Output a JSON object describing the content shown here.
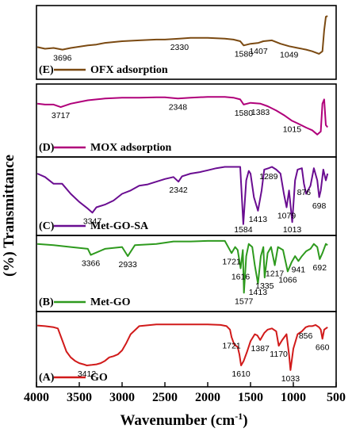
{
  "chart_data": {
    "type": "line",
    "title": "",
    "xlabel": "Wavenumber (cm",
    "xlabel_sup": "-1",
    "xlabel_close": ")",
    "ylabel": "(%) Transmittance",
    "xlim": [
      4000,
      500
    ],
    "x_reversed": true,
    "x_ticks": [
      4000,
      3500,
      3000,
      2500,
      2000,
      1500,
      1000,
      500
    ],
    "grid": false,
    "legend_placement": "bottom-left of each panel",
    "panels": [
      {
        "name": "(E) OFX adsorption",
        "color": "#7b4a12",
        "series": {
          "x": [
            3990,
            3900,
            3800,
            3696,
            3600,
            3500,
            3400,
            3300,
            3200,
            3000,
            2800,
            2600,
            2500,
            2330,
            2200,
            2000,
            1800,
            1700,
            1620,
            1580,
            1500,
            1407,
            1350,
            1250,
            1150,
            1049,
            950,
            850,
            780,
            700,
            660,
            640,
            620,
            600
          ],
          "y": [
            0.8,
            0.84,
            0.82,
            0.86,
            0.82,
            0.79,
            0.76,
            0.74,
            0.7,
            0.66,
            0.64,
            0.62,
            0.62,
            0.6,
            0.58,
            0.58,
            0.6,
            0.62,
            0.66,
            0.76,
            0.72,
            0.7,
            0.66,
            0.64,
            0.72,
            0.78,
            0.82,
            0.86,
            0.9,
            0.96,
            0.9,
            0.4,
            0.08,
            0.06
          ]
        },
        "annotations": [
          {
            "label": "3696",
            "x": 3696
          },
          {
            "label": "2330",
            "x": 2330
          },
          {
            "label": "1580",
            "x": 1580
          },
          {
            "label": "1407",
            "x": 1407
          },
          {
            "label": "1049",
            "x": 1049
          }
        ]
      },
      {
        "name": "(D) MOX adsorption",
        "color": "#b0007a",
        "series": {
          "x": [
            3990,
            3900,
            3800,
            3717,
            3600,
            3500,
            3400,
            3300,
            3200,
            3000,
            2800,
            2600,
            2500,
            2348,
            2200,
            2000,
            1800,
            1700,
            1620,
            1580,
            1500,
            1383,
            1300,
            1200,
            1100,
            1015,
            950,
            850,
            780,
            720,
            680,
            660,
            640,
            620,
            600
          ],
          "y": [
            0.2,
            0.22,
            0.22,
            0.28,
            0.2,
            0.16,
            0.12,
            0.1,
            0.08,
            0.06,
            0.06,
            0.05,
            0.05,
            0.08,
            0.06,
            0.04,
            0.04,
            0.06,
            0.1,
            0.22,
            0.18,
            0.2,
            0.26,
            0.36,
            0.48,
            0.6,
            0.66,
            0.76,
            0.82,
            0.92,
            0.85,
            0.2,
            0.1,
            0.7,
            0.75
          ]
        },
        "annotations": [
          {
            "label": "3717",
            "x": 3717
          },
          {
            "label": "2348",
            "x": 2348
          },
          {
            "label": "1580",
            "x": 1580
          },
          {
            "label": "1383",
            "x": 1383
          },
          {
            "label": "1015",
            "x": 1015
          }
        ]
      },
      {
        "name": "(C) Met-GO-SA",
        "color": "#6a0d91",
        "series": {
          "x": [
            3990,
            3900,
            3800,
            3700,
            3600,
            3500,
            3400,
            3347,
            3300,
            3200,
            3100,
            3000,
            2900,
            2800,
            2700,
            2600,
            2500,
            2400,
            2342,
            2300,
            2200,
            2100,
            2000,
            1900,
            1800,
            1700,
            1650,
            1620,
            1584,
            1550,
            1520,
            1500,
            1460,
            1413,
            1370,
            1340,
            1289,
            1250,
            1200,
            1150,
            1110,
            1079,
            1050,
            1013,
            980,
            950,
            900,
            876,
            850,
            800,
            760,
            720,
            698,
            680,
            650,
            620,
            600
          ],
          "y": [
            0.2,
            0.25,
            0.35,
            0.35,
            0.5,
            0.62,
            0.72,
            0.78,
            0.7,
            0.66,
            0.6,
            0.5,
            0.45,
            0.38,
            0.36,
            0.32,
            0.28,
            0.25,
            0.32,
            0.24,
            0.2,
            0.18,
            0.15,
            0.12,
            0.1,
            0.1,
            0.1,
            0.1,
            0.95,
            0.3,
            0.16,
            0.2,
            0.55,
            0.75,
            0.45,
            0.14,
            0.12,
            0.1,
            0.14,
            0.2,
            0.5,
            0.7,
            0.45,
            0.92,
            0.3,
            0.14,
            0.12,
            0.35,
            0.5,
            0.38,
            0.12,
            0.3,
            0.55,
            0.45,
            0.14,
            0.3,
            0.2
          ]
        },
        "annotations": [
          {
            "label": "3347",
            "x": 3347
          },
          {
            "label": "2342",
            "x": 2342
          },
          {
            "label": "1584",
            "x": 1584
          },
          {
            "label": "1413",
            "x": 1413
          },
          {
            "label": "1289",
            "x": 1289
          },
          {
            "label": "1079",
            "x": 1079
          },
          {
            "label": "1013",
            "x": 1013
          },
          {
            "label": "876",
            "x": 876
          },
          {
            "label": "698",
            "x": 698
          }
        ]
      },
      {
        "name": "(B) Met-GO",
        "color": "#2e9a1e",
        "series": {
          "x": [
            3990,
            3800,
            3600,
            3400,
            3366,
            3200,
            3000,
            2933,
            2850,
            2600,
            2400,
            2200,
            2000,
            1800,
            1721,
            1680,
            1650,
            1616,
            1590,
            1577,
            1550,
            1520,
            1480,
            1450,
            1413,
            1380,
            1350,
            1335,
            1300,
            1260,
            1217,
            1180,
            1120,
            1066,
            1020,
            980,
            941,
            900,
            850,
            800,
            760,
            720,
            692,
            660,
            620,
            600
          ],
          "y": [
            0.1,
            0.12,
            0.15,
            0.18,
            0.28,
            0.18,
            0.15,
            0.3,
            0.12,
            0.1,
            0.06,
            0.06,
            0.05,
            0.05,
            0.25,
            0.15,
            0.2,
            0.5,
            0.2,
            0.9,
            0.3,
            0.1,
            0.15,
            0.45,
            0.75,
            0.3,
            0.15,
            0.65,
            0.25,
            0.15,
            0.45,
            0.15,
            0.2,
            0.55,
            0.4,
            0.3,
            0.38,
            0.3,
            0.22,
            0.18,
            0.1,
            0.15,
            0.35,
            0.25,
            0.1,
            0.12
          ]
        },
        "annotations": [
          {
            "label": "3366",
            "x": 3366
          },
          {
            "label": "2933",
            "x": 2933
          },
          {
            "label": "1721",
            "x": 1721
          },
          {
            "label": "1616",
            "x": 1616
          },
          {
            "label": "1577",
            "x": 1577
          },
          {
            "label": "1413",
            "x": 1413
          },
          {
            "label": "1335",
            "x": 1335
          },
          {
            "label": "1217",
            "x": 1217
          },
          {
            "label": "1066",
            "x": 1066
          },
          {
            "label": "941",
            "x": 941
          },
          {
            "label": "692",
            "x": 692
          }
        ]
      },
      {
        "name": "(A) GO",
        "color": "#d11a1a",
        "series": {
          "x": [
            3990,
            3900,
            3800,
            3750,
            3700,
            3650,
            3600,
            3550,
            3500,
            3450,
            3412,
            3350,
            3300,
            3250,
            3200,
            3150,
            3100,
            3050,
            3000,
            2950,
            2900,
            2800,
            2600,
            2400,
            2200,
            2000,
            1850,
            1780,
            1740,
            1721,
            1690,
            1650,
            1630,
            1610,
            1580,
            1540,
            1500,
            1450,
            1420,
            1387,
            1340,
            1300,
            1250,
            1200,
            1170,
            1130,
            1080,
            1050,
            1033,
            1000,
            950,
            900,
            856,
            820,
            780,
            740,
            700,
            680,
            660,
            640,
            600
          ],
          "y": [
            0.05,
            0.06,
            0.08,
            0.1,
            0.3,
            0.5,
            0.6,
            0.66,
            0.7,
            0.72,
            0.74,
            0.73,
            0.72,
            0.7,
            0.66,
            0.6,
            0.58,
            0.55,
            0.48,
            0.35,
            0.2,
            0.06,
            0.03,
            0.03,
            0.03,
            0.03,
            0.04,
            0.06,
            0.12,
            0.25,
            0.38,
            0.42,
            0.55,
            0.74,
            0.66,
            0.5,
            0.32,
            0.2,
            0.22,
            0.3,
            0.18,
            0.12,
            0.1,
            0.15,
            0.4,
            0.3,
            0.2,
            0.55,
            0.82,
            0.45,
            0.2,
            0.15,
            0.08,
            0.06,
            0.06,
            0.04,
            0.08,
            0.12,
            0.28,
            0.12,
            0.08
          ]
        },
        "annotations": [
          {
            "label": "3412",
            "x": 3412
          },
          {
            "label": "1721",
            "x": 1721
          },
          {
            "label": "1610",
            "x": 1610
          },
          {
            "label": "1387",
            "x": 1387
          },
          {
            "label": "1170",
            "x": 1170
          },
          {
            "label": "1033",
            "x": 1033
          },
          {
            "label": "856",
            "x": 856
          },
          {
            "label": "660",
            "x": 660
          }
        ]
      }
    ]
  }
}
